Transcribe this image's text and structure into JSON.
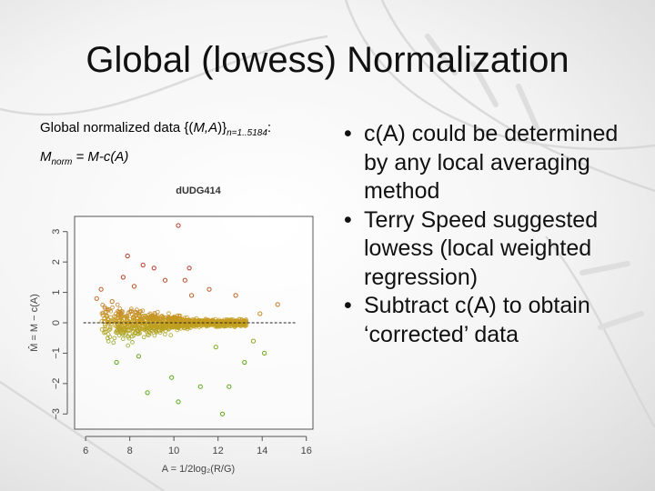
{
  "slide": {
    "title": "Global (lowess) Normalization",
    "caption_pre": "Global normalized data {(",
    "caption_ma": "M,A",
    "caption_post": ")}",
    "caption_sub": "n=1..5184",
    "caption_end": ":",
    "formula_m": "M",
    "formula_sub": "norm",
    "formula_rest": " = M-c(A)",
    "bullets": [
      "c(A) could be determined by any local averaging method",
      "Terry Speed suggested lowess (local weighted regression)",
      "Subtract c(A) to obtain ‘corrected’ data"
    ],
    "bullet_glyph": "•"
  },
  "chart_data": {
    "type": "scatter",
    "title": "dUDG414",
    "xlabel": "A = 1/2log₂(R/G)",
    "ylabel": "M̂ = M − c(A)",
    "xlim": [
      5.5,
      16.3
    ],
    "ylim": [
      -3.5,
      3.5
    ],
    "xticks": [
      6,
      8,
      10,
      12,
      14,
      16
    ],
    "yticks": [
      -3,
      -2,
      -1,
      0,
      1,
      2,
      3
    ],
    "reference_line_y": 0,
    "colors": {
      "high": "#b33a2a",
      "mid": "#c8a020",
      "low": "#5ea619",
      "line": "#222222"
    },
    "points": [
      [
        10.2,
        3.2
      ],
      [
        7.9,
        2.2
      ],
      [
        8.6,
        1.9
      ],
      [
        10.7,
        1.8
      ],
      [
        9.1,
        1.8
      ],
      [
        7.7,
        1.5
      ],
      [
        9.6,
        1.4
      ],
      [
        10.5,
        1.4
      ],
      [
        11.6,
        1.1
      ],
      [
        12.8,
        0.9
      ],
      [
        6.7,
        1.1
      ],
      [
        7.2,
        0.7
      ],
      [
        6.9,
        -0.3
      ],
      [
        7.4,
        -1.3
      ],
      [
        8.8,
        -2.3
      ],
      [
        10.2,
        -2.6
      ],
      [
        12.2,
        -3.0
      ],
      [
        12.5,
        -2.1
      ],
      [
        11.2,
        -2.1
      ],
      [
        13.2,
        -1.3
      ],
      [
        14.7,
        0.6
      ],
      [
        9.9,
        -1.8
      ],
      [
        8.4,
        -1.1
      ],
      [
        11.9,
        -0.8
      ],
      [
        13.9,
        0.3
      ],
      [
        13.6,
        -0.6
      ],
      [
        6.5,
        0.8
      ],
      [
        14.1,
        -1.0
      ],
      [
        10.8,
        0.9
      ],
      [
        8.2,
        1.2
      ]
    ]
  }
}
